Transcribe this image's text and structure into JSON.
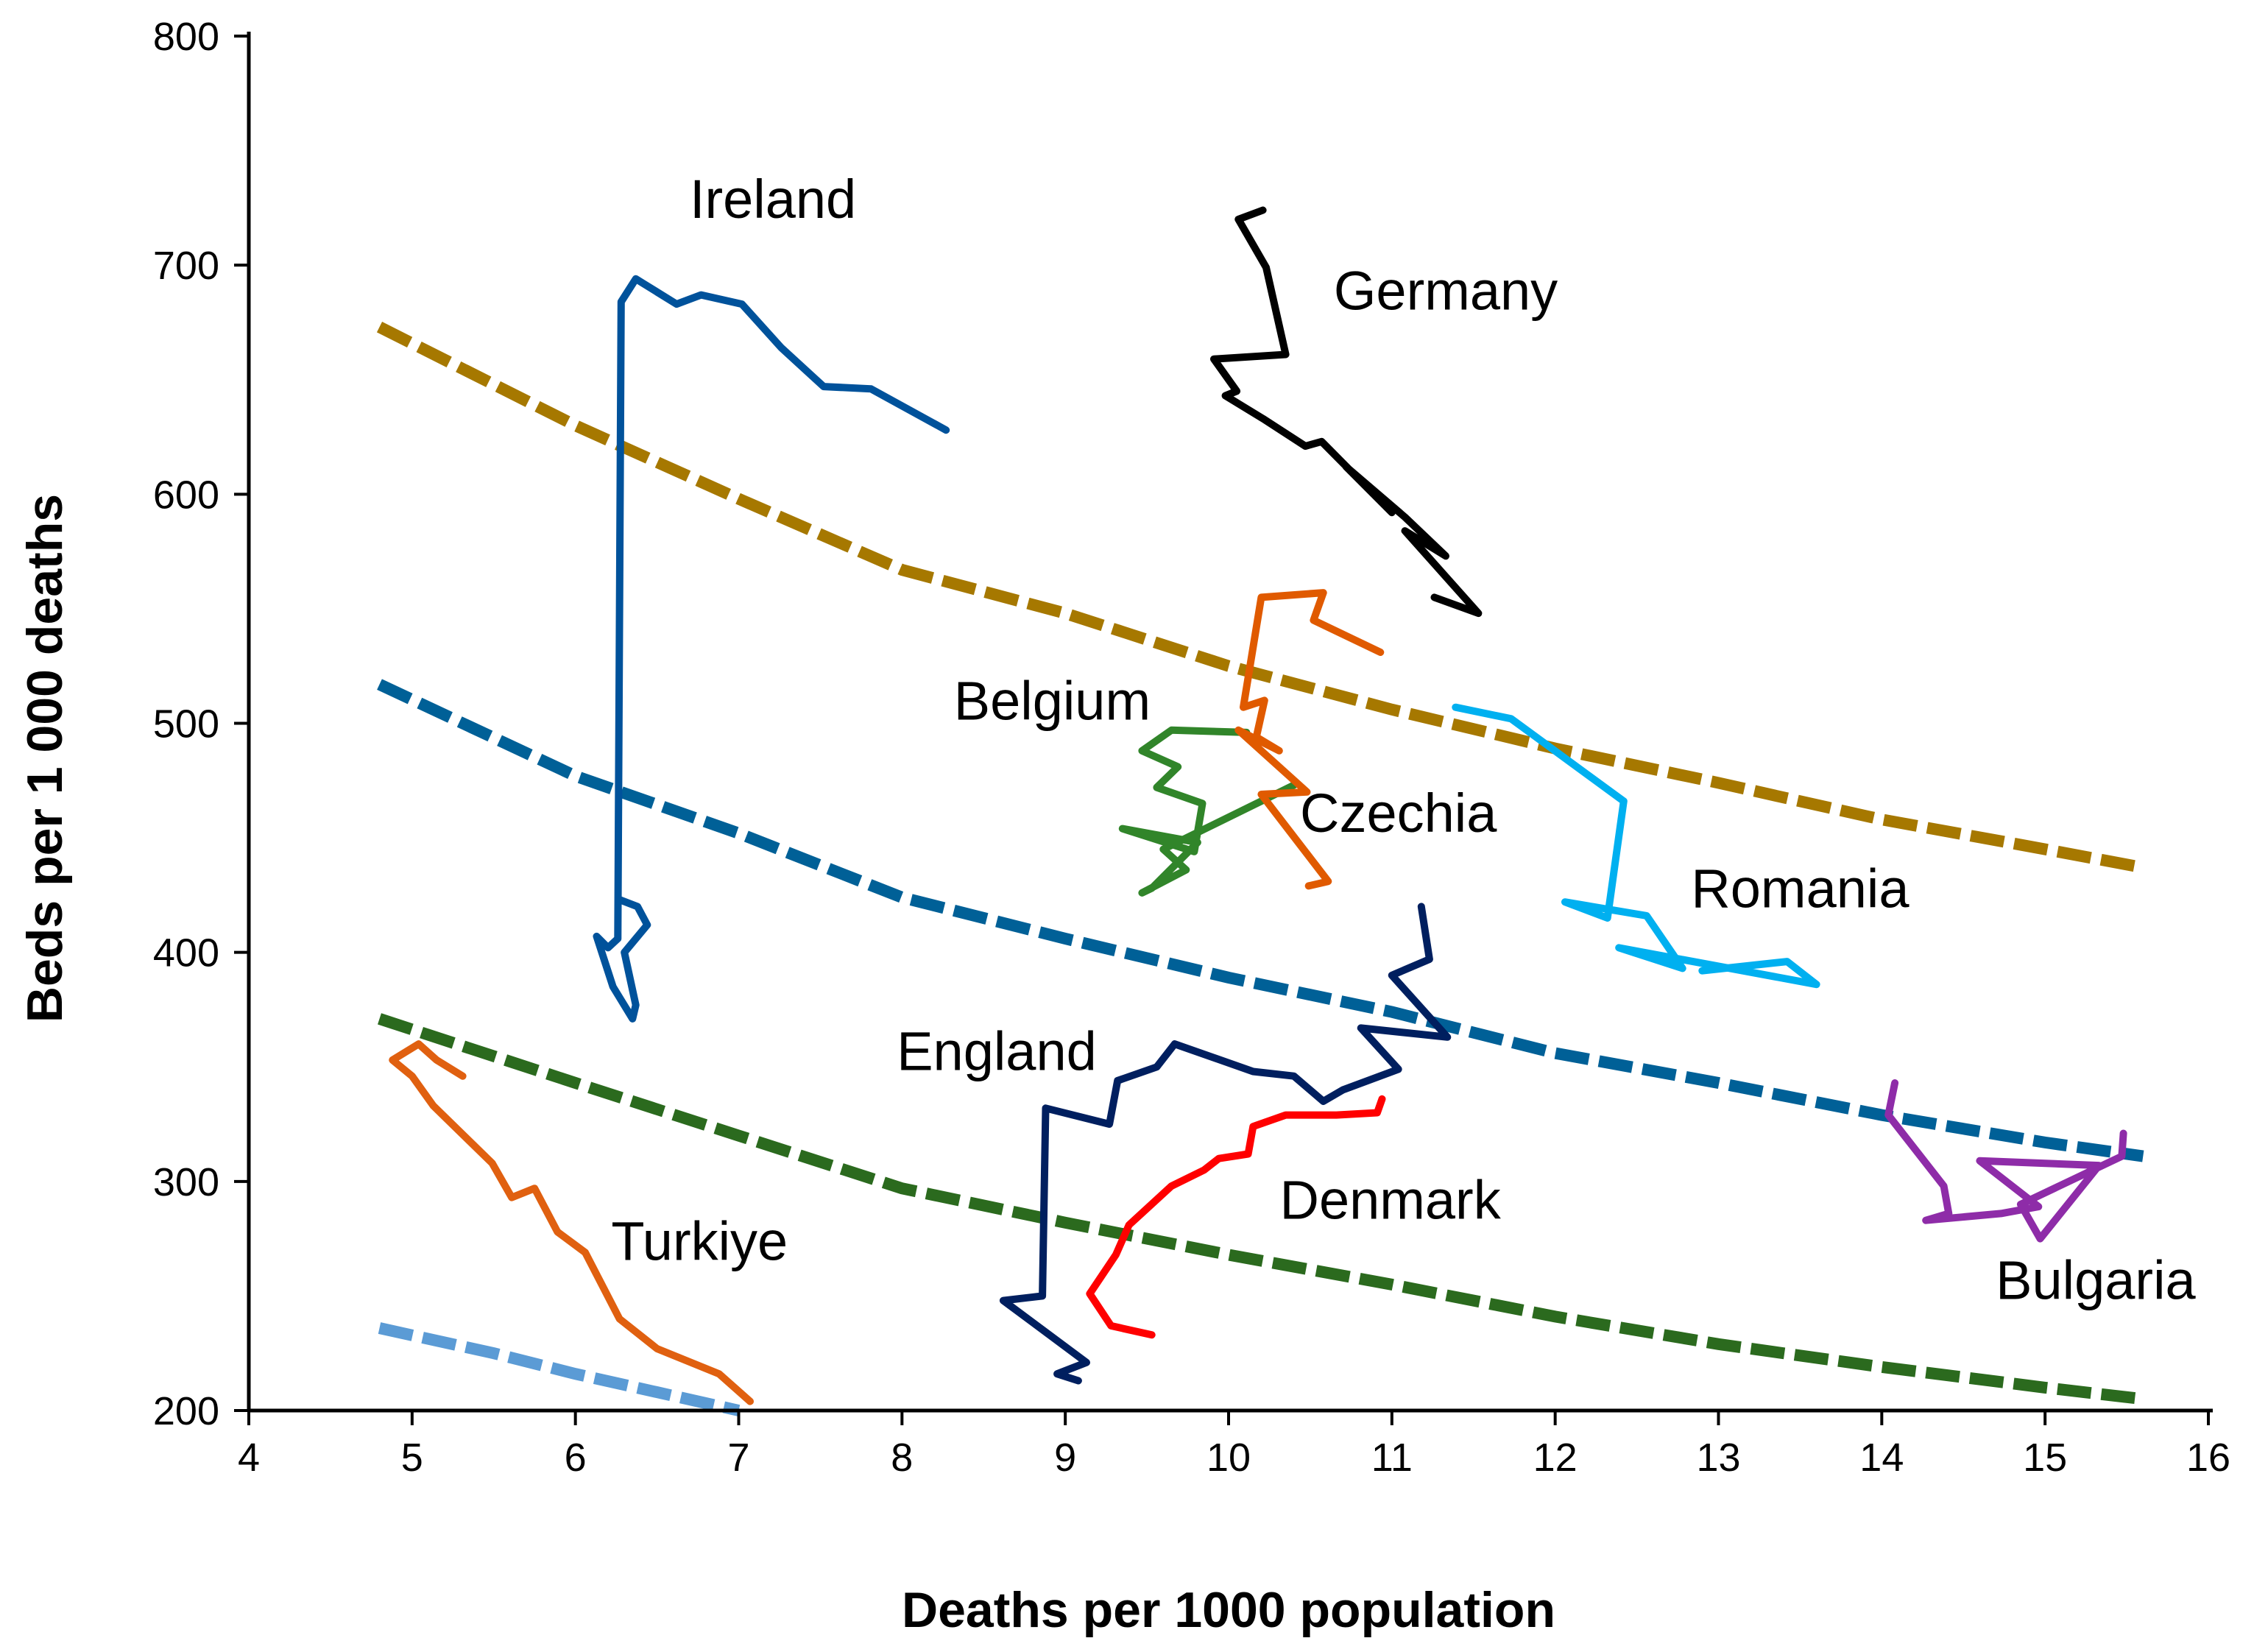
{
  "chart_data": {
    "type": "line",
    "title": "",
    "xlabel": "Deaths per 1000 population",
    "ylabel": "Beds per 1 000 deaths",
    "xlim": [
      4,
      16
    ],
    "ylim": [
      200,
      800
    ],
    "xticks": [
      4,
      5,
      6,
      7,
      8,
      9,
      10,
      11,
      12,
      13,
      14,
      15,
      16
    ],
    "yticks": [
      200,
      300,
      400,
      500,
      600,
      700,
      800
    ],
    "grid": false,
    "legend": "none",
    "reference_curves": [
      {
        "color": "#A67800",
        "points": [
          [
            4.8,
            673
          ],
          [
            6,
            630
          ],
          [
            7,
            598
          ],
          [
            8,
            567
          ],
          [
            9,
            548
          ],
          [
            10,
            525
          ],
          [
            11,
            506
          ],
          [
            12,
            489
          ],
          [
            13,
            474
          ],
          [
            14,
            458
          ],
          [
            15,
            445
          ],
          [
            15.6,
            437
          ]
        ]
      },
      {
        "color": "#006097",
        "points": [
          [
            4.8,
            517
          ],
          [
            6,
            477
          ],
          [
            7,
            452
          ],
          [
            8,
            424
          ],
          [
            9,
            406
          ],
          [
            10,
            389
          ],
          [
            11,
            374
          ],
          [
            12,
            356
          ],
          [
            13,
            343
          ],
          [
            14,
            329
          ],
          [
            15,
            317
          ],
          [
            15.6,
            311
          ]
        ]
      },
      {
        "color": "#2B6A1E",
        "points": [
          [
            4.8,
            371
          ],
          [
            6,
            343
          ],
          [
            7,
            320
          ],
          [
            8,
            297
          ],
          [
            9,
            282
          ],
          [
            10,
            268
          ],
          [
            11,
            255
          ],
          [
            12,
            241
          ],
          [
            13,
            229
          ],
          [
            14,
            219
          ],
          [
            15,
            210
          ],
          [
            15.6,
            205
          ]
        ]
      },
      {
        "color": "#5B9BD5",
        "points": [
          [
            4.8,
            236
          ],
          [
            5.5,
            225
          ],
          [
            6,
            216
          ],
          [
            6.5,
            208
          ],
          [
            7,
            200
          ]
        ]
      }
    ],
    "series": [
      {
        "name": "Ireland",
        "color": "#00529B",
        "label_at": [
          7.21,
          729
        ],
        "points": [
          [
            8.27,
            628
          ],
          [
            7.81,
            646
          ],
          [
            7.52,
            647
          ],
          [
            7.26,
            664
          ],
          [
            7.02,
            683
          ],
          [
            6.77,
            687
          ],
          [
            6.62,
            683
          ],
          [
            6.37,
            694
          ],
          [
            6.28,
            684
          ],
          [
            6.26,
            406
          ],
          [
            6.2,
            402
          ],
          [
            6.13,
            407
          ],
          [
            6.23,
            385
          ],
          [
            6.35,
            371
          ],
          [
            6.37,
            377
          ],
          [
            6.3,
            400
          ],
          [
            6.44,
            412
          ],
          [
            6.38,
            420
          ],
          [
            6.27,
            423
          ]
        ]
      },
      {
        "name": "Germany",
        "color": "#000000",
        "label_at": [
          11.33,
          689
        ],
        "points": [
          [
            10.21,
            724
          ],
          [
            10.06,
            720
          ],
          [
            10.23,
            699
          ],
          [
            10.35,
            661
          ],
          [
            9.91,
            659
          ],
          [
            10.05,
            645
          ],
          [
            9.98,
            643
          ],
          [
            10.21,
            633
          ],
          [
            10.47,
            621
          ],
          [
            10.57,
            623
          ],
          [
            11.0,
            592
          ],
          [
            10.72,
            612
          ],
          [
            11.08,
            590
          ],
          [
            11.33,
            573
          ],
          [
            11.08,
            584
          ],
          [
            11.53,
            548
          ],
          [
            11.26,
            555
          ]
        ]
      },
      {
        "name": "Belgium",
        "color": "#31852A",
        "label_at": [
          8.92,
          510
        ],
        "points": [
          [
            10.11,
            496
          ],
          [
            9.65,
            497
          ],
          [
            9.47,
            488
          ],
          [
            9.69,
            481
          ],
          [
            9.56,
            472
          ],
          [
            9.84,
            465
          ],
          [
            9.79,
            444
          ],
          [
            9.35,
            454
          ],
          [
            9.81,
            448
          ],
          [
            9.53,
            428
          ],
          [
            9.47,
            426
          ],
          [
            9.74,
            436
          ],
          [
            9.6,
            445
          ],
          [
            10.4,
            473
          ]
        ]
      },
      {
        "name": "Czechia",
        "color": "#E05A00",
        "label_at": [
          11.04,
          461
        ],
        "points": [
          [
            10.93,
            531
          ],
          [
            10.52,
            545
          ],
          [
            10.58,
            557
          ],
          [
            10.2,
            555
          ],
          [
            10.09,
            507
          ],
          [
            10.22,
            510
          ],
          [
            10.17,
            494
          ],
          [
            10.31,
            488
          ],
          [
            10.06,
            497
          ],
          [
            10.48,
            470
          ],
          [
            10.2,
            469
          ],
          [
            10.61,
            431
          ],
          [
            10.49,
            429
          ]
        ]
      },
      {
        "name": "Romania",
        "color": "#00B0F0",
        "label_at": [
          13.5,
          428
        ],
        "points": [
          [
            11.39,
            507
          ],
          [
            11.73,
            502
          ],
          [
            12.42,
            466
          ],
          [
            12.32,
            415
          ],
          [
            12.06,
            422
          ],
          [
            12.56,
            416
          ],
          [
            12.78,
            393
          ],
          [
            12.39,
            402
          ],
          [
            13.6,
            386
          ],
          [
            13.42,
            396
          ],
          [
            12.9,
            392
          ]
        ]
      },
      {
        "name": "England",
        "color": "#001F5F",
        "label_at": [
          8.58,
          357
        ],
        "points": [
          [
            11.18,
            420
          ],
          [
            11.23,
            397
          ],
          [
            11.0,
            390
          ],
          [
            11.34,
            363
          ],
          [
            10.81,
            367
          ],
          [
            11.04,
            349
          ],
          [
            10.7,
            340
          ],
          [
            10.58,
            335
          ],
          [
            10.4,
            346
          ],
          [
            10.15,
            348
          ],
          [
            9.67,
            360
          ],
          [
            9.56,
            350
          ],
          [
            9.32,
            344
          ],
          [
            9.27,
            325
          ],
          [
            8.88,
            332
          ],
          [
            8.86,
            250
          ],
          [
            8.62,
            248
          ],
          [
            9.13,
            221
          ],
          [
            8.95,
            216
          ],
          [
            9.08,
            213
          ]
        ]
      },
      {
        "name": "Denmark",
        "color": "#FF0000",
        "label_at": [
          10.99,
          292
        ],
        "points": [
          [
            10.94,
            336
          ],
          [
            10.91,
            330
          ],
          [
            10.66,
            329
          ],
          [
            10.35,
            329
          ],
          [
            10.15,
            324
          ],
          [
            10.12,
            312
          ],
          [
            9.94,
            310
          ],
          [
            9.85,
            305
          ],
          [
            9.65,
            298
          ],
          [
            9.39,
            281
          ],
          [
            9.31,
            268
          ],
          [
            9.15,
            251
          ],
          [
            9.28,
            237
          ],
          [
            9.53,
            233
          ]
        ]
      },
      {
        "name": "Turkiye",
        "color": "#E06010",
        "label_at": [
          6.76,
          274
        ],
        "points": [
          [
            7.07,
            204
          ],
          [
            6.88,
            216
          ],
          [
            6.5,
            227
          ],
          [
            6.27,
            240
          ],
          [
            6.06,
            269
          ],
          [
            5.89,
            278
          ],
          [
            5.75,
            297
          ],
          [
            5.61,
            293
          ],
          [
            5.49,
            308
          ],
          [
            5.13,
            333
          ],
          [
            5.0,
            346
          ],
          [
            4.88,
            353
          ],
          [
            5.04,
            360
          ],
          [
            5.15,
            353
          ],
          [
            5.31,
            346
          ]
        ]
      },
      {
        "name": "Bulgaria",
        "color": "#8E2CA8",
        "label_at": [
          15.31,
          257
        ],
        "points": [
          [
            14.08,
            343
          ],
          [
            14.04,
            329
          ],
          [
            14.38,
            298
          ],
          [
            14.41,
            286
          ],
          [
            14.27,
            283
          ],
          [
            14.73,
            286
          ],
          [
            14.96,
            289
          ],
          [
            14.6,
            309
          ],
          [
            15.33,
            307
          ],
          [
            14.97,
            275
          ],
          [
            14.85,
            290
          ],
          [
            15.47,
            311
          ],
          [
            15.48,
            321
          ]
        ]
      }
    ]
  }
}
